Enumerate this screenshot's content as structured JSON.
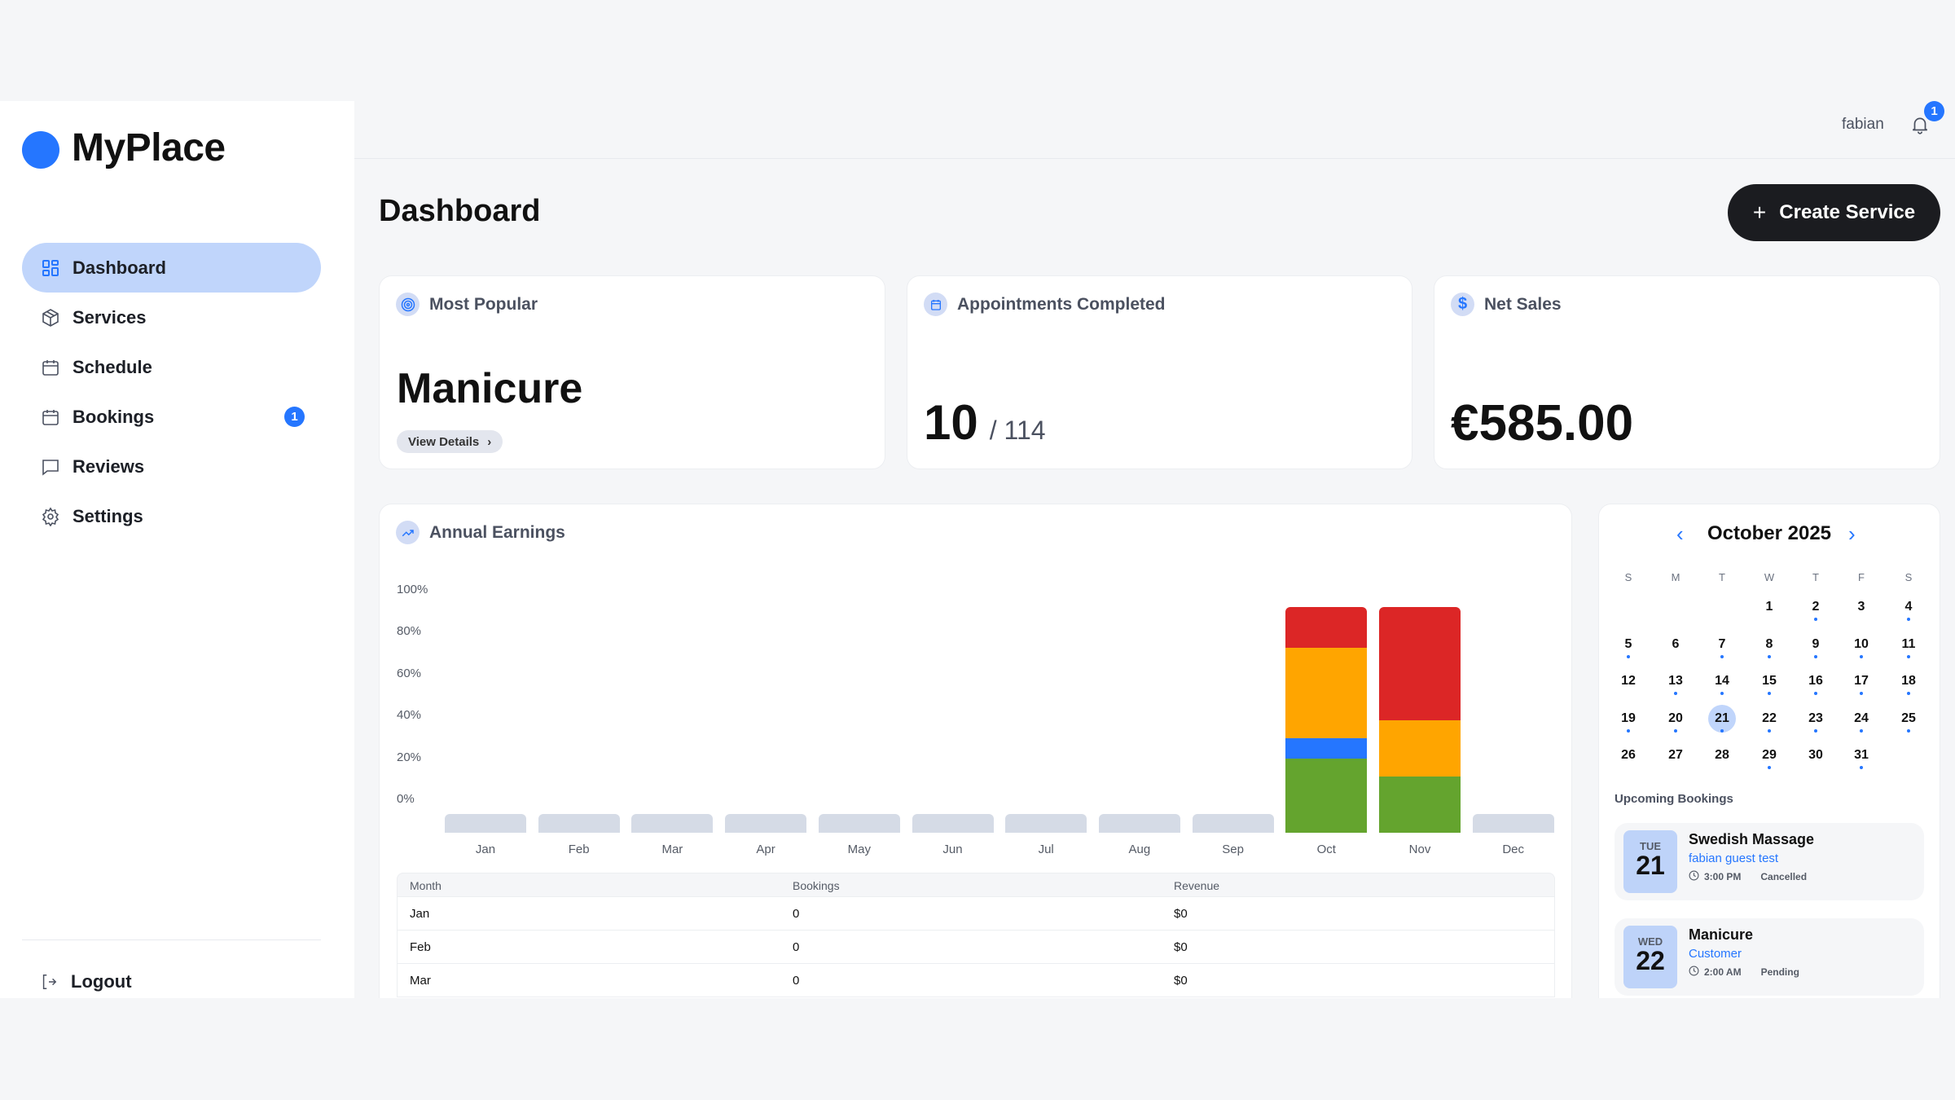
{
  "brand": {
    "name": "MyPlace",
    "color": "#2576ff"
  },
  "sidebar": {
    "items": [
      {
        "label": "Dashboard",
        "icon": "dashboard-grid-icon",
        "active": true
      },
      {
        "label": "Services",
        "icon": "box-icon"
      },
      {
        "label": "Schedule",
        "icon": "calendar-grid-icon"
      },
      {
        "label": "Bookings",
        "icon": "calendar-icon",
        "badge": "1"
      },
      {
        "label": "Reviews",
        "icon": "message-icon"
      },
      {
        "label": "Settings",
        "icon": "gear-icon"
      }
    ],
    "logout": "Logout"
  },
  "header": {
    "user": "fabian",
    "notifications": "1"
  },
  "page": {
    "title": "Dashboard",
    "create_button": "Create Service"
  },
  "cards": {
    "popular": {
      "title": "Most Popular",
      "value": "Manicure",
      "link": "View Details"
    },
    "appointments": {
      "title": "Appointments Completed",
      "value": "10",
      "total": "/ 114"
    },
    "sales": {
      "title": "Net Sales",
      "value": "€585.00"
    }
  },
  "earnings": {
    "title": "Annual Earnings"
  },
  "chart_data": {
    "type": "bar",
    "stacked": true,
    "categories": [
      "Jan",
      "Feb",
      "Mar",
      "Apr",
      "May",
      "Jun",
      "Jul",
      "Aug",
      "Sep",
      "Oct",
      "Nov",
      "Dec"
    ],
    "y_ticks": [
      "100%",
      "80%",
      "60%",
      "40%",
      "20%",
      "0%"
    ],
    "series": [
      {
        "color": "#64a42e",
        "values": [
          0,
          0,
          0,
          0,
          0,
          0,
          0,
          0,
          0,
          33,
          25,
          0
        ]
      },
      {
        "color": "#2576ff",
        "values": [
          0,
          0,
          0,
          0,
          0,
          0,
          0,
          0,
          0,
          9,
          0,
          0
        ]
      },
      {
        "color": "#ffa500",
        "values": [
          0,
          0,
          0,
          0,
          0,
          0,
          0,
          0,
          0,
          40,
          25,
          0
        ]
      },
      {
        "color": "#dc2626",
        "values": [
          0,
          0,
          0,
          0,
          0,
          0,
          0,
          0,
          0,
          18,
          50,
          0
        ]
      }
    ],
    "empty_color": "#d5dbe6"
  },
  "table": {
    "headers": [
      "Month",
      "Bookings",
      "Revenue"
    ],
    "rows": [
      [
        "Jan",
        "0",
        "$0"
      ],
      [
        "Feb",
        "0",
        "$0"
      ],
      [
        "Mar",
        "0",
        "$0"
      ]
    ]
  },
  "calendar": {
    "title": "October 2025",
    "weekdays": [
      "S",
      "M",
      "T",
      "W",
      "T",
      "F",
      "S"
    ],
    "first_weekday": 3,
    "days": 31,
    "selected": 21,
    "booked_days": [
      2,
      4,
      5,
      7,
      8,
      9,
      10,
      11,
      13,
      14,
      15,
      16,
      17,
      18,
      19,
      20,
      21,
      22,
      23,
      24,
      25,
      29,
      31
    ]
  },
  "upcoming": {
    "title": "Upcoming Bookings",
    "items": [
      {
        "dow": "TUE",
        "day": "21",
        "service": "Swedish Massage",
        "customer": "fabian guest test",
        "time": "3:00 PM",
        "status": "Cancelled"
      },
      {
        "dow": "WED",
        "day": "22",
        "service": "Manicure",
        "customer": "Customer",
        "time": "2:00 AM",
        "status": "Pending"
      }
    ]
  }
}
